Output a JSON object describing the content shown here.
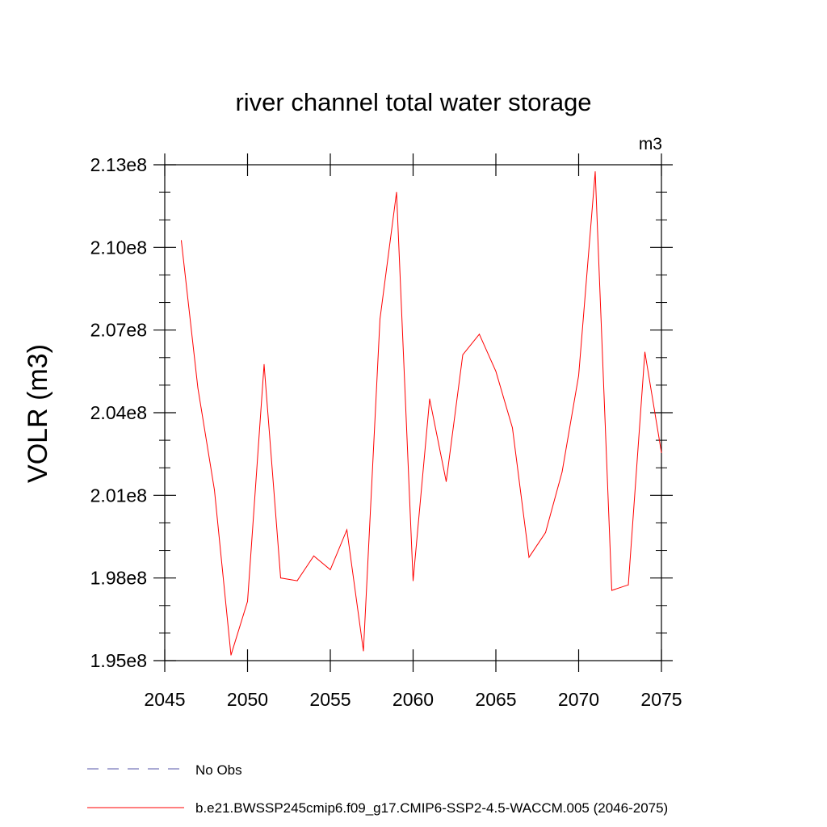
{
  "chart_data": {
    "type": "line",
    "title": "river channel total water storage",
    "units_label": "m3",
    "ylabel": "VOLR  (m3)",
    "xlabel": "",
    "xlim": [
      2045,
      2075
    ],
    "ylim": [
      195000000.0,
      213000000.0
    ],
    "x_ticks": [
      2045,
      2050,
      2055,
      2060,
      2065,
      2070,
      2075
    ],
    "x_tick_labels": [
      "2045",
      "2050",
      "2055",
      "2060",
      "2065",
      "2070",
      "2075"
    ],
    "y_ticks": [
      195000000.0,
      198000000.0,
      201000000.0,
      204000000.0,
      207000000.0,
      210000000.0,
      213000000.0
    ],
    "y_tick_labels": [
      "1.95e8",
      "1.98e8",
      "2.01e8",
      "2.04e8",
      "2.07e8",
      "2.10e8",
      "2.13e8"
    ],
    "grid": false,
    "legend_position": "bottom",
    "series": [
      {
        "name": "b.e21.BWSSP245cmip6.f09_g17.CMIP6-SSP2-4.5-WACCM.005 (2046-2075)",
        "color": "#ff0000",
        "style": "solid",
        "x": [
          2046,
          2047,
          2048,
          2049,
          2050,
          2051,
          2052,
          2053,
          2054,
          2055,
          2056,
          2057,
          2058,
          2059,
          2060,
          2061,
          2062,
          2063,
          2064,
          2065,
          2066,
          2067,
          2068,
          2069,
          2070,
          2071,
          2072,
          2073,
          2074,
          2075
        ],
        "values": [
          210250000.0,
          204900000.0,
          201200000.0,
          195200000.0,
          197150000.0,
          205750000.0,
          198000000.0,
          197900000.0,
          198800000.0,
          198300000.0,
          199750000.0,
          195350000.0,
          207400000.0,
          212000000.0,
          197900000.0,
          204500000.0,
          201500000.0,
          206100000.0,
          206850000.0,
          205500000.0,
          203450000.0,
          198750000.0,
          199650000.0,
          201850000.0,
          205350000.0,
          212750000.0,
          197550000.0,
          197750000.0,
          206200000.0,
          202550000.0
        ]
      },
      {
        "name": "No Obs",
        "color": "#5555aa",
        "style": "dashed",
        "x": [],
        "values": []
      }
    ]
  }
}
